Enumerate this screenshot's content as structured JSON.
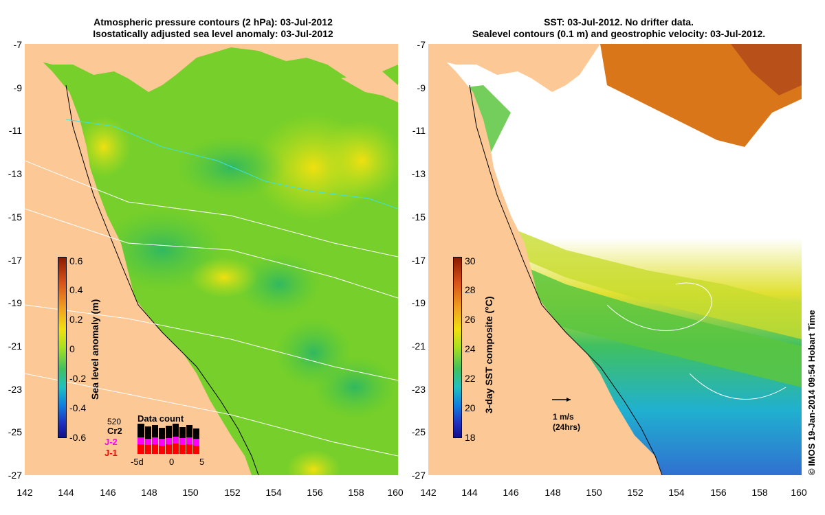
{
  "left_panel": {
    "title_line1": "Atmospheric pressure contours (2 hPa): 03-Jul-2012",
    "title_line2": "Isostatically adjusted sea level anomaly: 03-Jul-2012",
    "colorbar_title": "Sea level anomaly (m)",
    "colorbar_ticks": [
      "0.6",
      "0.4",
      "0.2",
      "0",
      "-0.2",
      "-0.4",
      "-0.6"
    ],
    "data_count": {
      "title": "Data count",
      "max_label": "520",
      "missions": [
        {
          "name": "Cr2",
          "color": "#000000"
        },
        {
          "name": "J-2",
          "color": "#ff00ff"
        },
        {
          "name": "J-1",
          "color": "#ff0000"
        }
      ],
      "x_ticks": [
        "-5d",
        "0",
        "5"
      ]
    }
  },
  "right_panel": {
    "title_line1": "SST: 03-Jul-2012. No drifter data.",
    "title_line2": "Sealevel contours (0.1 m) and geostrophic velocity: 03-Jul-2012.",
    "colorbar_title": "3-day SST composite (°C)",
    "colorbar_ticks": [
      "30",
      "28",
      "26",
      "24",
      "22",
      "20",
      "18"
    ],
    "scale_arrow_label": "1 m/s",
    "scale_arrow_sublabel": "(24hrs)"
  },
  "axes": {
    "lat_ticks": [
      "-7",
      "-9",
      "-11",
      "-13",
      "-15",
      "-17",
      "-19",
      "-21",
      "-23",
      "-25",
      "-27"
    ],
    "lon_ticks": [
      "142",
      "144",
      "146",
      "148",
      "150",
      "152",
      "154",
      "156",
      "158",
      "160"
    ]
  },
  "credit": "© IMOS 19-Jan-2014 09:54 Hobart Time",
  "colors": {
    "land": "#fbc896",
    "sla_mid": "#7ed321",
    "sst_warm": "#d9761a",
    "sst_cool": "#2f8fe0"
  }
}
